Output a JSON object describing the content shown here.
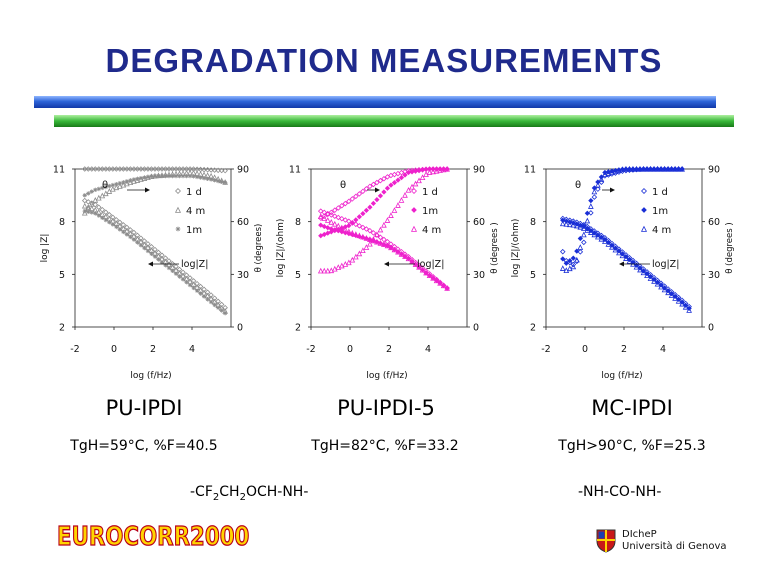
{
  "title": "DEGRADATION MEASUREMENTS",
  "colors": {
    "title": "#1f2a8c",
    "pu_ipdi": "#8c8c8c",
    "pu_ipdi_5": "#ee22cc",
    "mc_ipdi": "#1a2fd6"
  },
  "panels": [
    {
      "name": "PU-IPDI",
      "tg": "TgH=59°C, %F=40.5"
    },
    {
      "name": "PU-IPDI-5",
      "tg": "TgH=82°C, %F=33.2"
    },
    {
      "name": "MC-IPDI",
      "tg": "TgH>90°C, %F=25.3"
    }
  ],
  "formulas": {
    "left": {
      "a": "-CF",
      "s1": "2",
      "b": "CH",
      "s2": "2",
      "c": "OCH-NH-"
    },
    "right": "-NH-CO-NH-"
  },
  "footer": {
    "logo": "EUROCORR2000",
    "dept": "DIcheP",
    "university": "Università di Genova"
  },
  "chart_data": [
    {
      "type": "scatter",
      "xlabel": "log (f/Hz)",
      "ylabel": "log |Z|",
      "y2label": "θ (degrees)",
      "xlim": [
        -2,
        6
      ],
      "ylim": [
        2,
        11
      ],
      "y2lim": [
        0,
        90
      ],
      "xticks": [
        "-2",
        "0",
        "2",
        "4"
      ],
      "yticks": [
        "2",
        "5",
        "8",
        "11"
      ],
      "y2ticks": [
        "0",
        "30",
        "60",
        "90"
      ],
      "annotations": [
        "θ",
        "log|Z|"
      ],
      "series": [
        {
          "name": "1 d",
          "marker": "diamond",
          "z": [
            [
              -1.5,
              9.2
            ],
            [
              -1,
              9.0
            ],
            [
              0,
              8.2
            ],
            [
              1,
              7.4
            ],
            [
              2,
              6.5
            ],
            [
              3,
              5.6
            ],
            [
              4,
              4.7
            ],
            [
              5,
              3.8
            ],
            [
              5.8,
              3.0
            ]
          ],
          "theta": [
            [
              -1.5,
              90
            ],
            [
              0,
              90
            ],
            [
              2,
              90
            ],
            [
              4,
              90
            ],
            [
              5.8,
              89
            ]
          ]
        },
        {
          "name": "4 m",
          "marker": "triangle",
          "z": [
            [
              -1.5,
              8.9
            ],
            [
              -1,
              8.7
            ],
            [
              0,
              8.0
            ],
            [
              1,
              7.2
            ],
            [
              2,
              6.3
            ],
            [
              3,
              5.4
            ],
            [
              4,
              4.5
            ],
            [
              5,
              3.6
            ],
            [
              5.8,
              2.8
            ]
          ],
          "theta": [
            [
              -1.5,
              65
            ],
            [
              -1,
              72
            ],
            [
              0,
              79
            ],
            [
              1,
              83
            ],
            [
              2,
              86
            ],
            [
              3,
              87
            ],
            [
              4,
              88
            ],
            [
              5,
              86
            ],
            [
              5.8,
              82
            ]
          ]
        },
        {
          "name": "1m",
          "marker": "star",
          "z": [
            [
              -1.5,
              8.6
            ],
            [
              -1,
              8.5
            ],
            [
              0,
              7.8
            ],
            [
              1,
              7.0
            ],
            [
              2,
              6.1
            ],
            [
              3,
              5.2
            ],
            [
              4,
              4.3
            ],
            [
              5,
              3.4
            ],
            [
              5.8,
              2.7
            ]
          ],
          "theta": [
            [
              -1.5,
              75
            ],
            [
              -1,
              78
            ],
            [
              0,
              81
            ],
            [
              1,
              84
            ],
            [
              2,
              86
            ],
            [
              3,
              86
            ],
            [
              4,
              86
            ],
            [
              5,
              84
            ],
            [
              5.8,
              82
            ]
          ]
        }
      ]
    },
    {
      "type": "scatter",
      "xlabel": "log (f/Hz)",
      "ylabel": "log |Z|/(ohm)",
      "y2label": "θ (degrees )",
      "xlim": [
        -2,
        6
      ],
      "ylim": [
        2,
        11
      ],
      "y2lim": [
        0,
        90
      ],
      "xticks": [
        "-2",
        "0",
        "2",
        "4"
      ],
      "yticks": [
        "2",
        "5",
        "8",
        "11"
      ],
      "y2ticks": [
        "0",
        "30",
        "60",
        "90"
      ],
      "annotations": [
        "θ",
        "log|Z|"
      ],
      "series": [
        {
          "name": "1 d",
          "marker": "diamond",
          "z": [
            [
              -1.5,
              8.6
            ],
            [
              -1,
              8.4
            ],
            [
              0,
              8.0
            ],
            [
              1,
              7.5
            ],
            [
              2,
              6.8
            ],
            [
              3,
              6.0
            ],
            [
              4,
              5.1
            ],
            [
              5,
              4.2
            ]
          ],
          "theta": [
            [
              -1.5,
              62
            ],
            [
              -1,
              65
            ],
            [
              0,
              72
            ],
            [
              1,
              80
            ],
            [
              2,
              86
            ],
            [
              3,
              89
            ],
            [
              4,
              90
            ],
            [
              5,
              90
            ]
          ]
        },
        {
          "name": "1m",
          "marker": "filled-diamond",
          "z": [
            [
              -1.5,
              7.8
            ],
            [
              -1,
              7.6
            ],
            [
              0,
              7.3
            ],
            [
              1,
              7.0
            ],
            [
              2,
              6.6
            ],
            [
              3,
              5.9
            ],
            [
              4,
              5.0
            ],
            [
              5,
              4.2
            ]
          ],
          "theta": [
            [
              -1.5,
              52
            ],
            [
              -1,
              54
            ],
            [
              0,
              58
            ],
            [
              1,
              68
            ],
            [
              2,
              80
            ],
            [
              3,
              88
            ],
            [
              4,
              90
            ],
            [
              5,
              90
            ]
          ]
        },
        {
          "name": "4 m",
          "marker": "triangle",
          "z": [
            [
              -1.5,
              8.3
            ],
            [
              -1,
              8.0
            ],
            [
              0,
              7.4
            ],
            [
              1,
              7.0
            ],
            [
              2,
              6.6
            ],
            [
              3,
              5.9
            ],
            [
              4,
              5.0
            ],
            [
              5,
              4.2
            ]
          ],
          "theta": [
            [
              -1.5,
              32
            ],
            [
              -1,
              32
            ],
            [
              0,
              37
            ],
            [
              1,
              47
            ],
            [
              2,
              62
            ],
            [
              3,
              78
            ],
            [
              4,
              88
            ],
            [
              5,
              90
            ]
          ]
        }
      ]
    },
    {
      "type": "scatter",
      "xlabel": "log (f/Hz)",
      "ylabel": "log |Z|/(ohm)",
      "y2label": "θ (degrees )",
      "xlim": [
        -2,
        6
      ],
      "ylim": [
        2,
        11
      ],
      "y2lim": [
        0,
        90
      ],
      "xticks": [
        "-2",
        "0",
        "2",
        "4"
      ],
      "yticks": [
        "2",
        "5",
        "8",
        "11"
      ],
      "y2ticks": [
        "0",
        "30",
        "60",
        "90"
      ],
      "annotations": [
        "θ",
        "log|Z|"
      ],
      "series": [
        {
          "name": "1 d",
          "marker": "diamond",
          "z": [
            [
              -1.2,
              8.2
            ],
            [
              -0.5,
              8.0
            ],
            [
              0,
              7.8
            ],
            [
              1,
              7.1
            ],
            [
              2,
              6.2
            ],
            [
              3,
              5.3
            ],
            [
              4,
              4.4
            ],
            [
              5,
              3.5
            ],
            [
              5.5,
              3.0
            ]
          ],
          "theta": [
            [
              -1.2,
              45
            ],
            [
              -1,
              38
            ],
            [
              -0.5,
              35
            ],
            [
              0,
              50
            ],
            [
              0.5,
              75
            ],
            [
              1,
              86
            ],
            [
              2,
              89
            ],
            [
              3,
              90
            ],
            [
              4,
              90
            ],
            [
              5,
              90
            ]
          ]
        },
        {
          "name": "1m",
          "marker": "filled-diamond",
          "z": [
            [
              -1.2,
              8.1
            ],
            [
              -0.5,
              7.9
            ],
            [
              0,
              7.7
            ],
            [
              1,
              7.0
            ],
            [
              2,
              6.1
            ],
            [
              3,
              5.2
            ],
            [
              4,
              4.3
            ],
            [
              5,
              3.4
            ],
            [
              5.5,
              2.9
            ]
          ],
          "theta": [
            [
              -1.2,
              40
            ],
            [
              -1,
              36
            ],
            [
              -0.5,
              40
            ],
            [
              0,
              60
            ],
            [
              0.5,
              80
            ],
            [
              1,
              88
            ],
            [
              2,
              90
            ],
            [
              3,
              90
            ],
            [
              4,
              90
            ],
            [
              5,
              90
            ]
          ]
        },
        {
          "name": "4 m",
          "marker": "triangle",
          "z": [
            [
              -1.2,
              7.9
            ],
            [
              -0.5,
              7.8
            ],
            [
              0,
              7.6
            ],
            [
              1,
              6.9
            ],
            [
              2,
              6.0
            ],
            [
              3,
              5.1
            ],
            [
              4,
              4.2
            ],
            [
              5,
              3.3
            ],
            [
              5.5,
              2.8
            ]
          ],
          "theta": [
            [
              -1.2,
              34
            ],
            [
              -1,
              32
            ],
            [
              -0.5,
              35
            ],
            [
              0,
              55
            ],
            [
              0.5,
              78
            ],
            [
              1,
              87
            ],
            [
              2,
              90
            ],
            [
              3,
              90
            ],
            [
              4,
              90
            ],
            [
              5,
              90
            ]
          ]
        }
      ]
    }
  ]
}
